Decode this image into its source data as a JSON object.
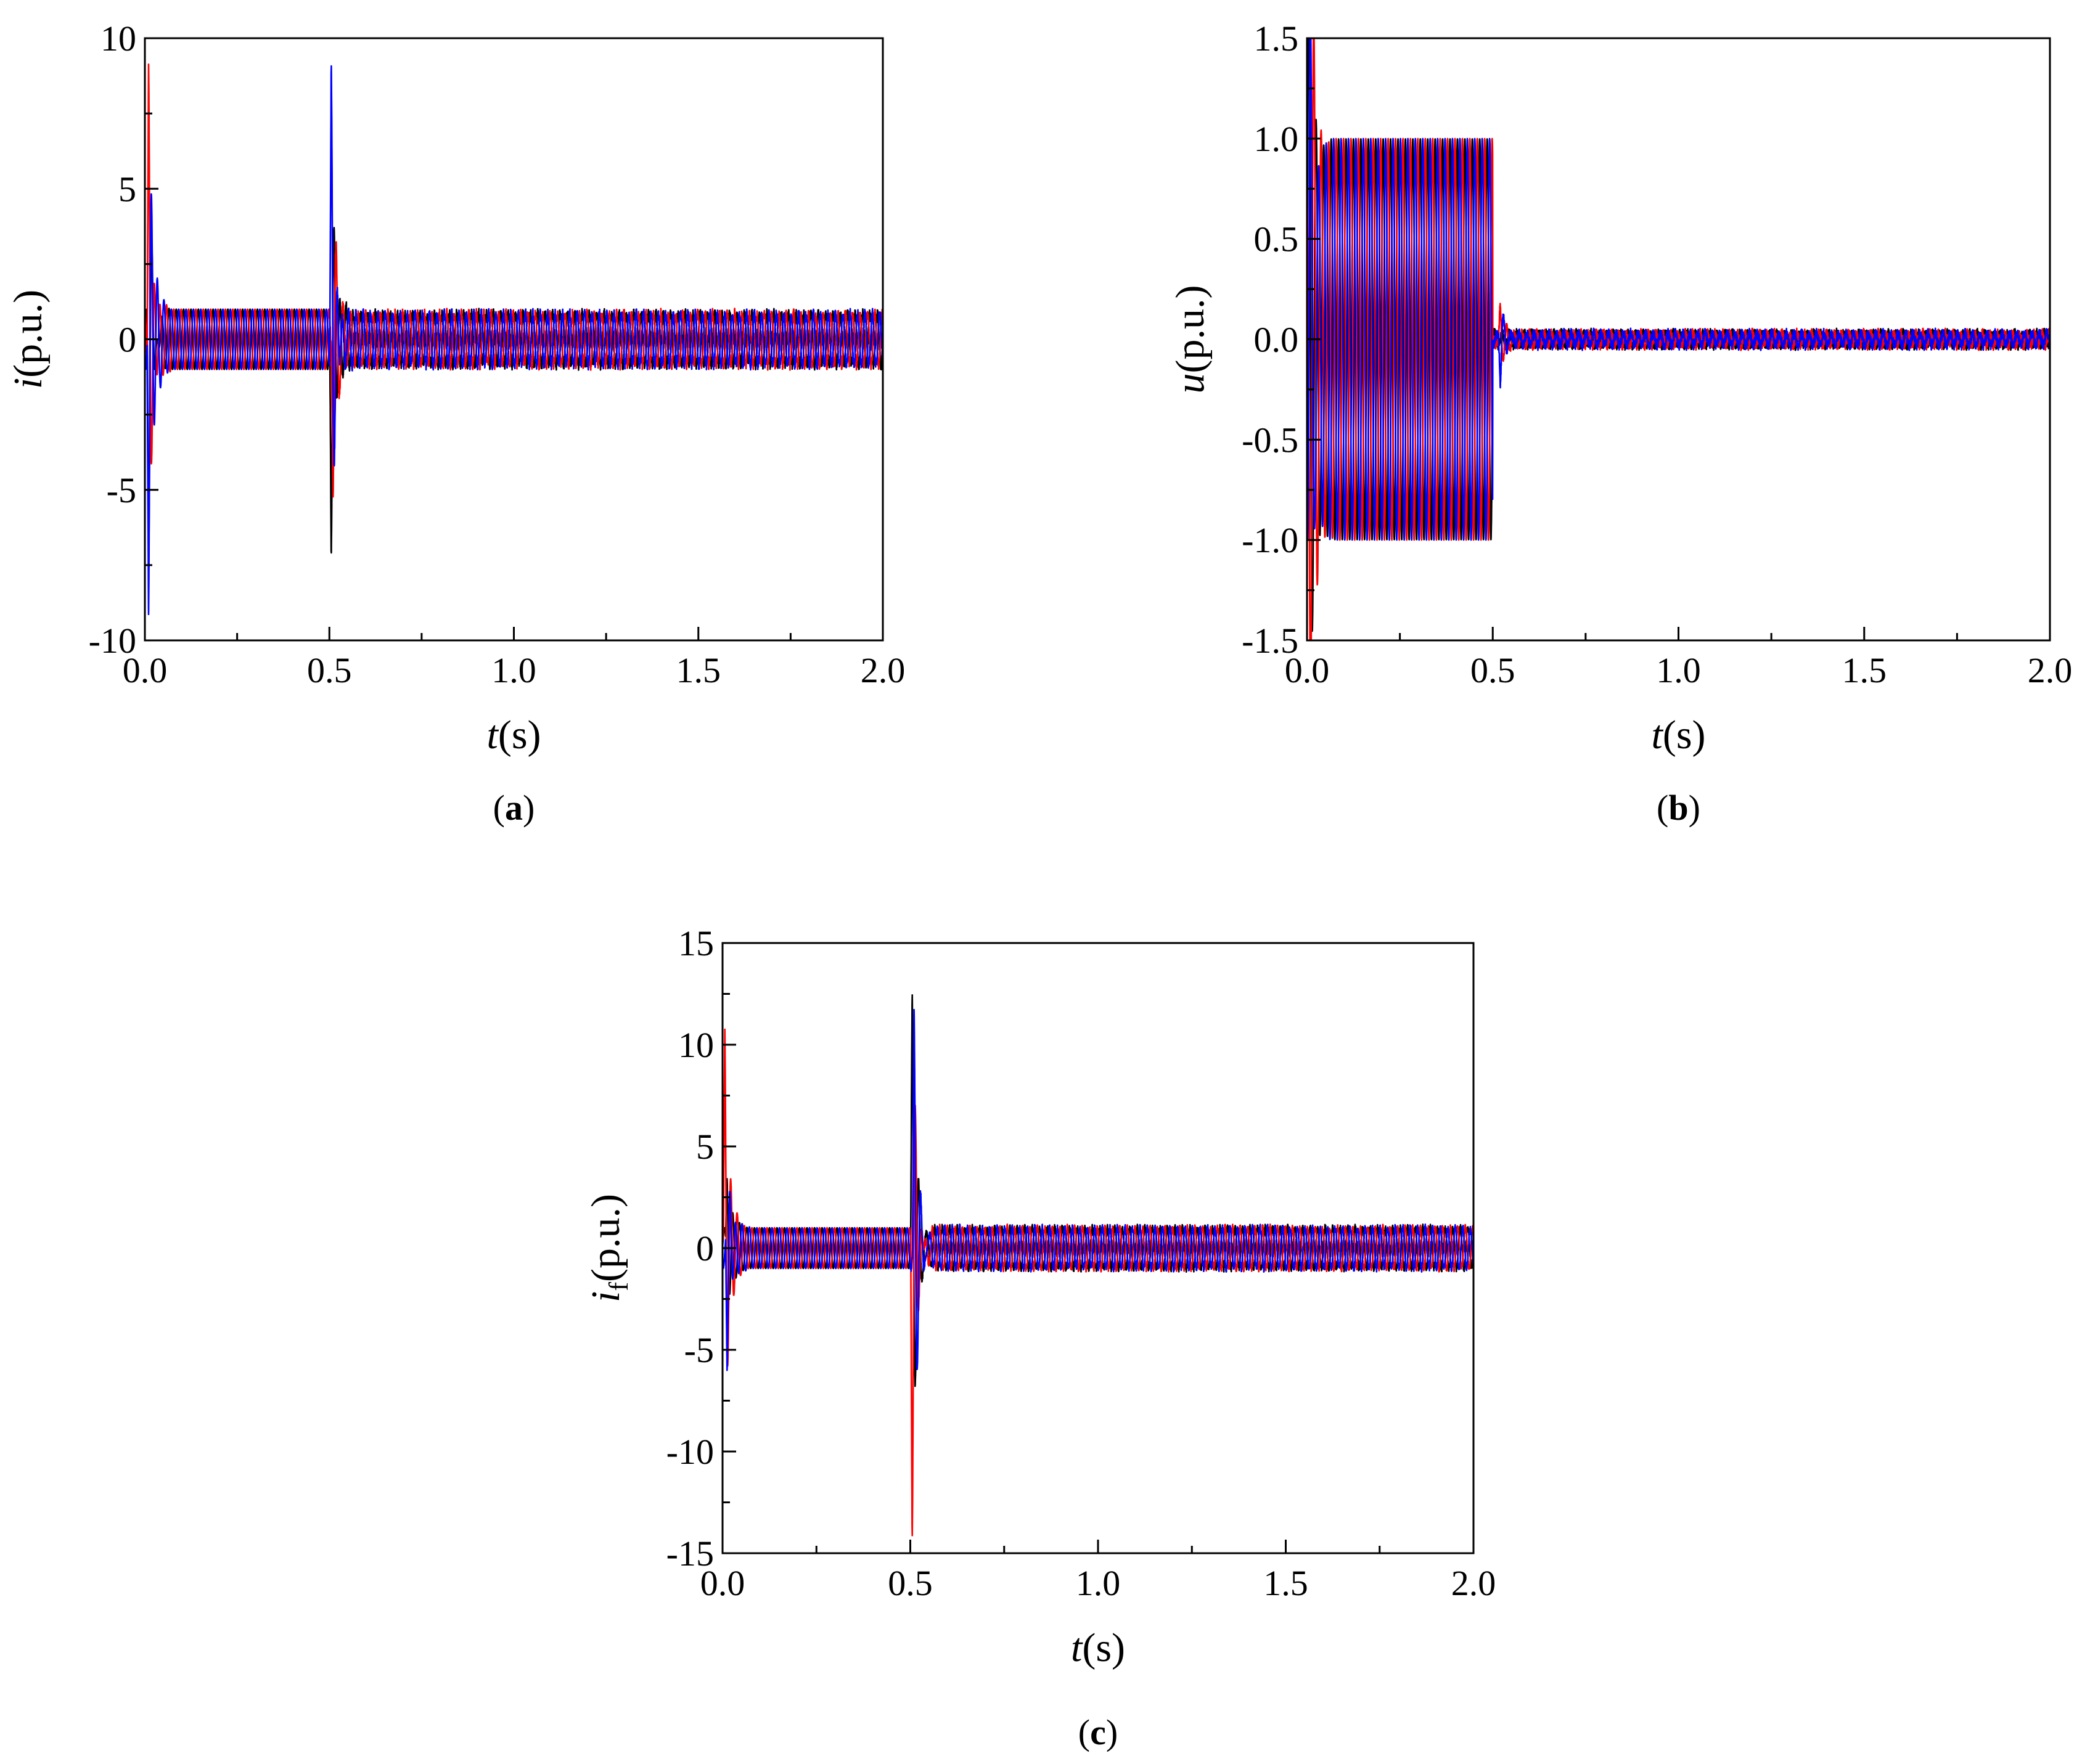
{
  "chart_data": [
    {
      "id": "a",
      "type": "line",
      "panel_label": "a",
      "xlabel_var": "t",
      "xlabel_unit": "(s)",
      "ylabel_var": "i",
      "ylabel_sub": "",
      "ylabel_unit": "(p.u.)",
      "xlim": [
        0,
        2.0
      ],
      "ylim": [
        -10,
        10
      ],
      "xticks": [
        0.0,
        0.5,
        1.0,
        1.5,
        2.0
      ],
      "xtick_labels": [
        "0.0",
        "0.5",
        "1.0",
        "1.5",
        "2.0"
      ],
      "yticks": [
        -10,
        -5,
        0,
        5,
        10
      ],
      "ytick_labels": [
        "-10",
        "-5",
        "0",
        "5",
        "10"
      ],
      "grid": false,
      "series": [
        {
          "color": "#000000",
          "amplitude": 1.0,
          "phase_deg": 0,
          "sections": [
            {
              "t": [
                0.0,
                0.5
              ],
              "amp": 1.0
            },
            {
              "t": [
                0.5,
                2.0
              ],
              "amp": 0.85
            }
          ],
          "transients": [
            {
              "t": 0.01,
              "peak": -7.5
            },
            {
              "t": 0.505,
              "peak": -8.2
            }
          ]
        },
        {
          "color": "#ff0000",
          "amplitude": 1.0,
          "phase_deg": 120,
          "sections": [
            {
              "t": [
                0.0,
                0.5
              ],
              "amp": 1.0
            },
            {
              "t": [
                0.5,
                2.0
              ],
              "amp": 0.85
            }
          ],
          "transients": [
            {
              "t": 0.01,
              "peak": 10.0
            },
            {
              "t": 0.51,
              "peak": -4.5
            }
          ]
        },
        {
          "color": "#0000ff",
          "amplitude": 1.0,
          "phase_deg": 240,
          "sections": [
            {
              "t": [
                0.0,
                0.5
              ],
              "amp": 1.0
            },
            {
              "t": [
                0.5,
                2.0
              ],
              "amp": 0.85
            }
          ],
          "transients": [
            {
              "t": 0.01,
              "peak": -10.0
            },
            {
              "t": 0.505,
              "peak": 9.6
            }
          ]
        }
      ]
    },
    {
      "id": "b",
      "type": "line",
      "panel_label": "b",
      "xlabel_var": "t",
      "xlabel_unit": "(s)",
      "ylabel_var": "u",
      "ylabel_sub": "",
      "ylabel_unit": "(p.u.)",
      "xlim": [
        0,
        2.0
      ],
      "ylim": [
        -1.5,
        1.5
      ],
      "xticks": [
        0.0,
        0.5,
        1.0,
        1.5,
        2.0
      ],
      "xtick_labels": [
        "0.0",
        "0.5",
        "1.0",
        "1.5",
        "2.0"
      ],
      "yticks": [
        -1.5,
        -1.0,
        -0.5,
        0.0,
        0.5,
        1.0,
        1.5
      ],
      "ytick_labels": [
        "-1.5",
        "-1.0",
        "-0.5",
        "0.0",
        "0.5",
        "1.0",
        "1.5"
      ],
      "grid": false,
      "series": [
        {
          "color": "#000000",
          "amplitude": 1.0,
          "phase_deg": 0,
          "sections": [
            {
              "t": [
                0.0,
                0.5
              ],
              "amp": 1.0
            },
            {
              "t": [
                0.5,
                2.0
              ],
              "amp": 0.03
            }
          ],
          "transients": [
            {
              "t": 0.005,
              "peak": 1.1
            }
          ]
        },
        {
          "color": "#ff0000",
          "amplitude": 1.0,
          "phase_deg": 120,
          "sections": [
            {
              "t": [
                0.0,
                0.5
              ],
              "amp": 1.0
            },
            {
              "t": [
                0.5,
                2.0
              ],
              "amp": 0.03
            }
          ],
          "transients": [
            {
              "t": 0.01,
              "peak": -1.15
            },
            {
              "t": 0.52,
              "peak": 0.15
            }
          ]
        },
        {
          "color": "#0000ff",
          "amplitude": 1.0,
          "phase_deg": 240,
          "sections": [
            {
              "t": [
                0.0,
                0.5
              ],
              "amp": 1.0
            },
            {
              "t": [
                0.5,
                2.0
              ],
              "amp": 0.03
            }
          ],
          "transients": [
            {
              "t": 0.008,
              "peak": 1.12
            },
            {
              "t": 0.52,
              "peak": -0.2
            }
          ]
        }
      ]
    },
    {
      "id": "c",
      "type": "line",
      "panel_label": "c",
      "xlabel_var": "t",
      "xlabel_unit": "(s)",
      "ylabel_var": "i",
      "ylabel_sub": "f",
      "ylabel_unit": "(p.u.)",
      "xlim": [
        0,
        2.0
      ],
      "ylim": [
        -15,
        15
      ],
      "xticks": [
        0.0,
        0.5,
        1.0,
        1.5,
        2.0
      ],
      "xtick_labels": [
        "0.0",
        "0.5",
        "1.0",
        "1.5",
        "2.0"
      ],
      "yticks": [
        -15,
        -10,
        -5,
        0,
        5,
        10,
        15
      ],
      "ytick_labels": [
        "-15",
        "-10",
        "-5",
        "0",
        "5",
        "10",
        "15"
      ],
      "grid": false,
      "series": [
        {
          "color": "#000000",
          "amplitude": 1.0,
          "phase_deg": 0,
          "sections": [
            {
              "t": [
                0.0,
                0.5
              ],
              "amp": 1.0
            },
            {
              "t": [
                0.5,
                2.0
              ],
              "amp": 1.0
            }
          ],
          "transients": [
            {
              "t": 0.012,
              "peak": 4.0
            },
            {
              "t": 0.505,
              "peak": 11.5
            }
          ]
        },
        {
          "color": "#ff0000",
          "amplitude": 1.0,
          "phase_deg": 120,
          "sections": [
            {
              "t": [
                0.0,
                0.5
              ],
              "amp": 1.0
            },
            {
              "t": [
                0.5,
                2.0
              ],
              "amp": 1.0
            }
          ],
          "transients": [
            {
              "t": 0.006,
              "peak": 11.5
            },
            {
              "t": 0.505,
              "peak": -13.8
            }
          ]
        },
        {
          "color": "#0000ff",
          "amplitude": 1.0,
          "phase_deg": 240,
          "sections": [
            {
              "t": [
                0.0,
                0.5
              ],
              "amp": 1.0
            },
            {
              "t": [
                0.5,
                2.0
              ],
              "amp": 1.0
            }
          ],
          "transients": [
            {
              "t": 0.012,
              "peak": -7.0
            },
            {
              "t": 0.51,
              "peak": 10.8
            }
          ]
        }
      ]
    }
  ]
}
